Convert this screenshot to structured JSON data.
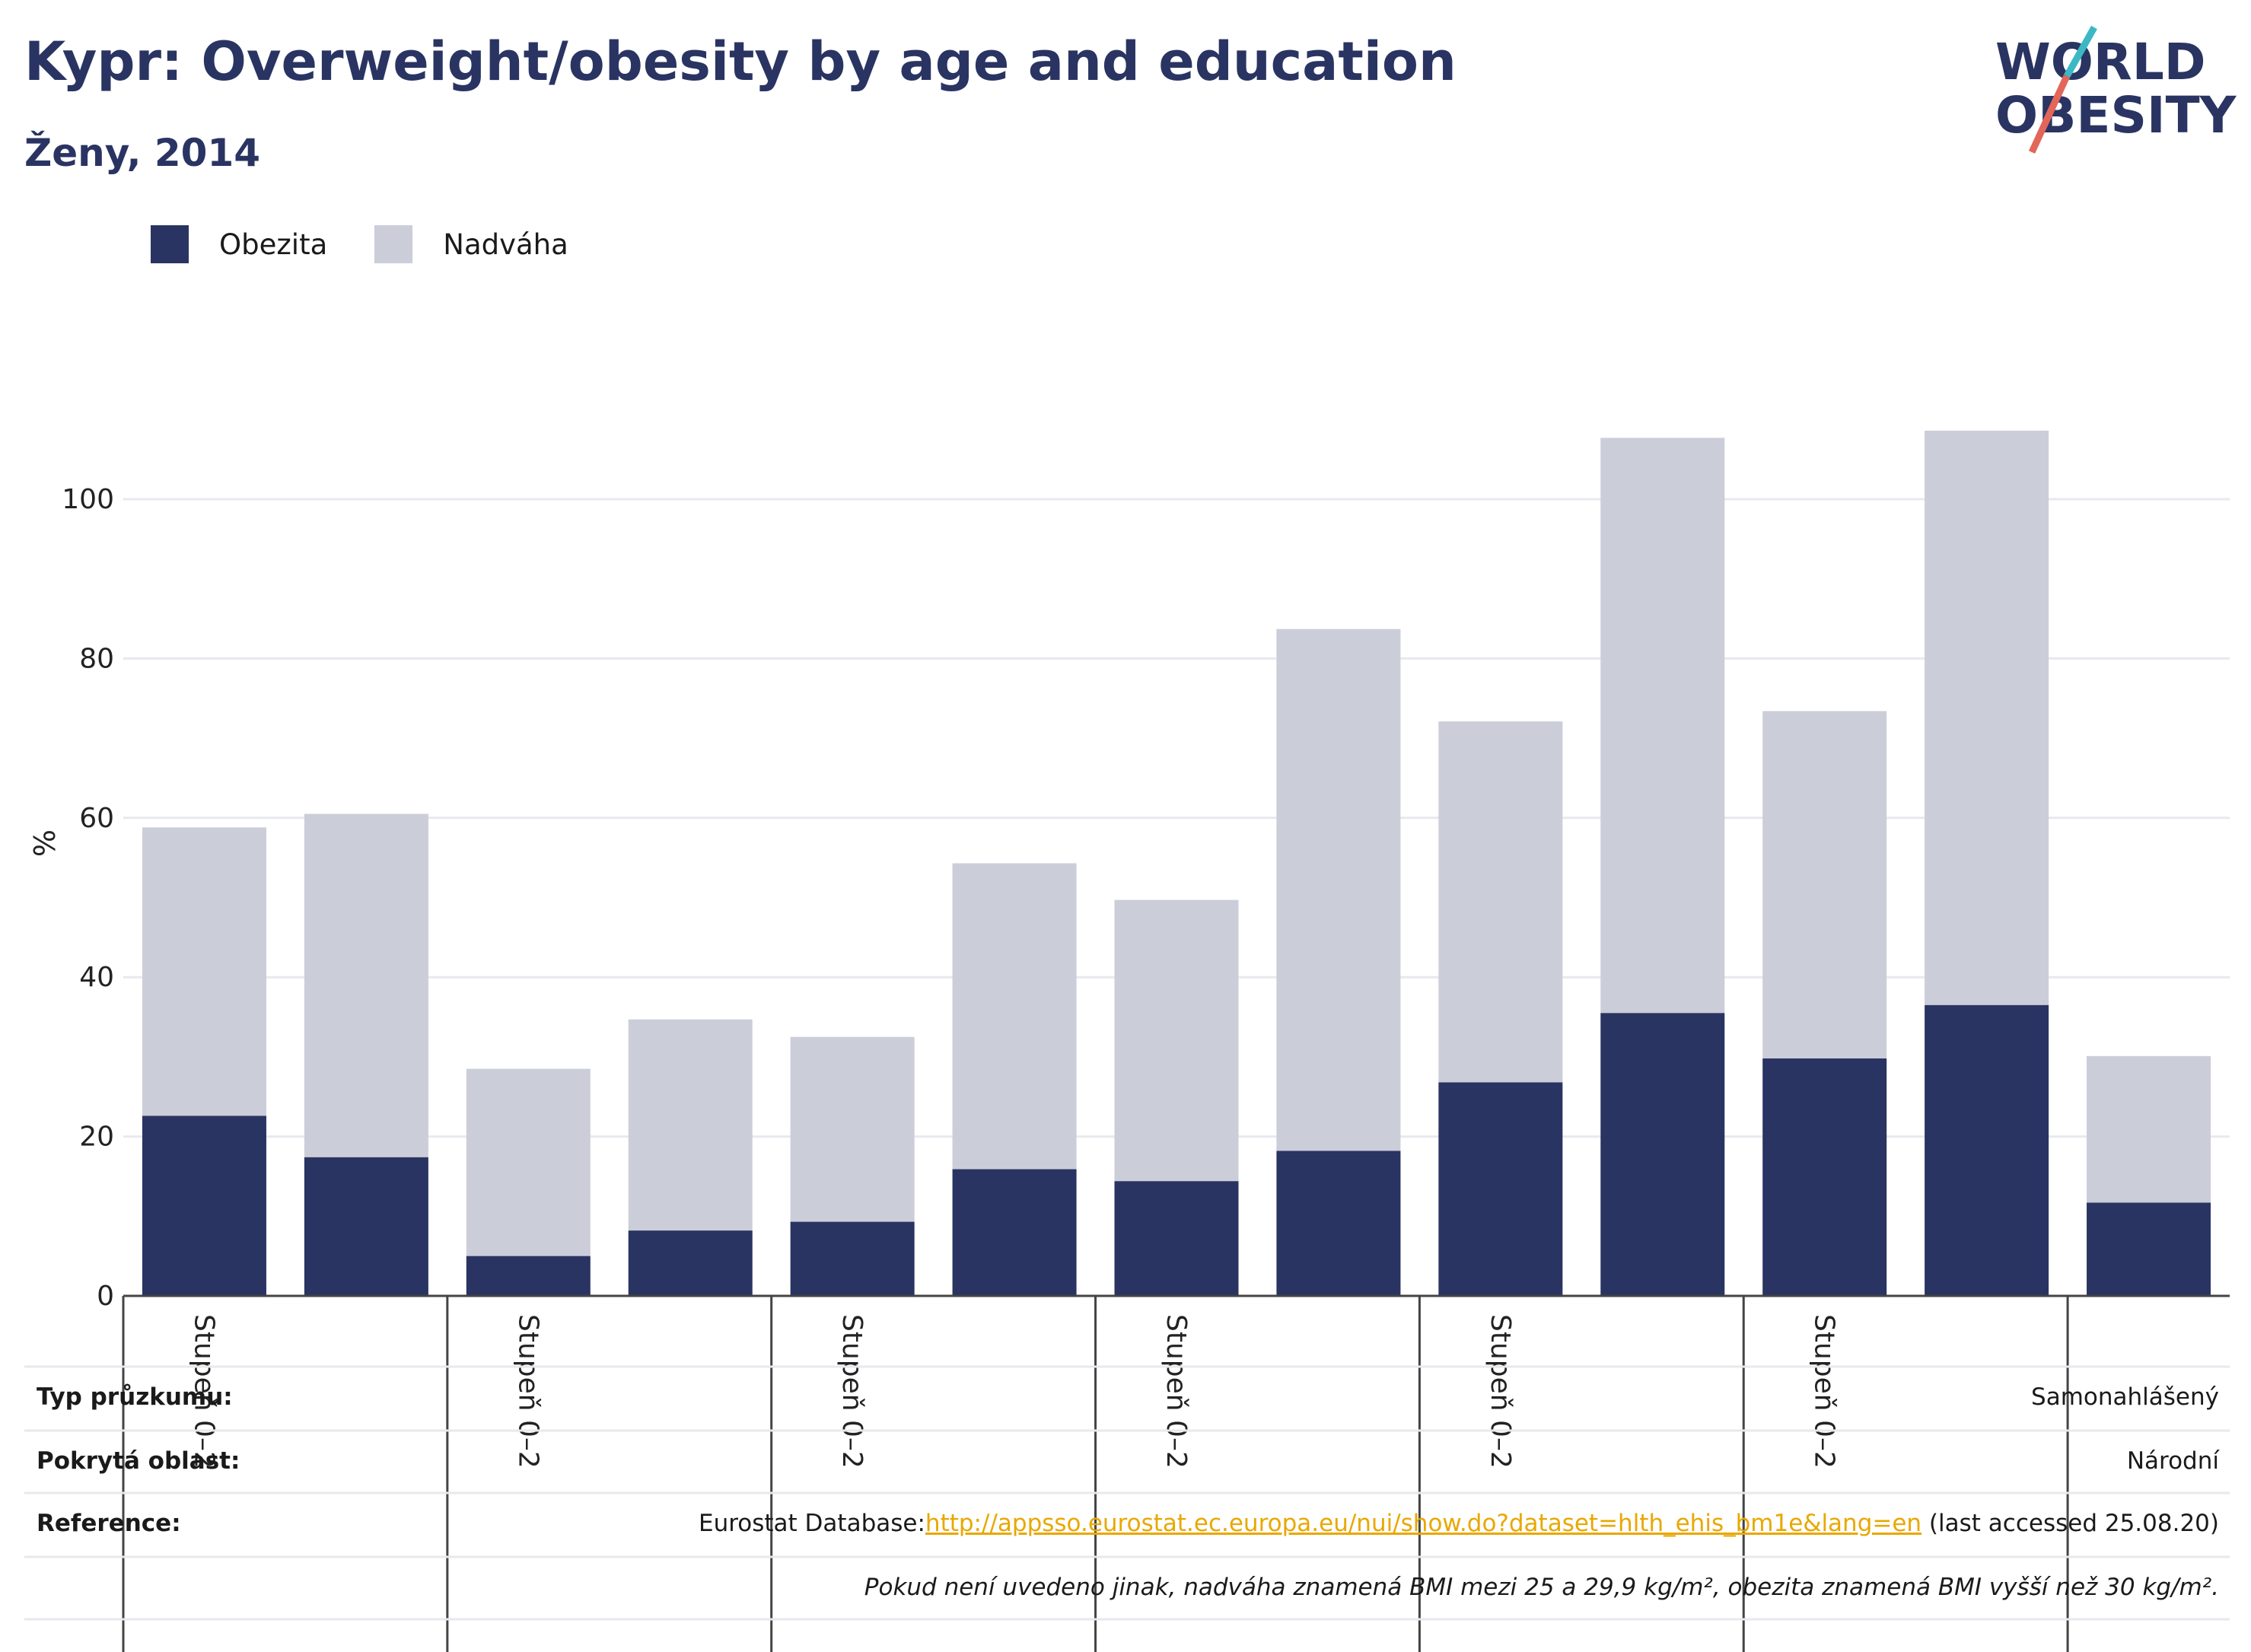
{
  "header": {
    "title": "Kypr: Overweight/obesity by age and education",
    "subtitle": "Ženy, 2014"
  },
  "logo": {
    "line1": "WORLD",
    "line2": "OBESITY"
  },
  "colors": {
    "obesity": "#2a3462",
    "overweight": "#cbcdd9",
    "accent_teal": "#3bb8c4",
    "accent_red": "#e2665a",
    "link": "#e8a800"
  },
  "chart_data": {
    "type": "bar",
    "stacked": true,
    "ylabel": "%",
    "ylim": [
      0,
      115
    ],
    "yticks": [
      0,
      20,
      40,
      60,
      80,
      100
    ],
    "grid": true,
    "legend_position": "top-left",
    "categories": [
      "Stupeň 0–2",
      "",
      "Stupeň 0–2",
      "",
      "Stupeň 0–2",
      "",
      "Stupeň 0–2",
      "",
      "Stupeň 0–2",
      "",
      "Stupeň 0–2",
      "",
      ""
    ],
    "series": [
      {
        "name": "Obezita",
        "values": [
          22.6,
          17.4,
          5.0,
          8.2,
          9.3,
          15.9,
          14.4,
          18.2,
          26.8,
          35.5,
          29.8,
          36.5,
          11.7
        ]
      },
      {
        "name": "Nadváha",
        "values": [
          36.2,
          43.1,
          23.5,
          26.5,
          23.2,
          38.4,
          35.3,
          65.5,
          45.3,
          72.2,
          43.6,
          72.1,
          18.4
        ]
      }
    ]
  },
  "info": {
    "survey_label": "Typ průzkumu:",
    "survey_value": "Samonahlášený",
    "area_label": "Pokrytá oblast:",
    "area_value": "Národní",
    "ref_label": "Reference:",
    "ref_prefix": "Eurostat Database:",
    "ref_link": "http://appsso.eurostat.ec.europa.eu/nui/show.do?dataset=hlth_ehis_bm1e&lang=en",
    "ref_suffix": " (last accessed 25.08.20)",
    "note": "Pokud není uvedeno jinak, nadváha znamená BMI mezi 25 a 29,9 kg/m², obezita znamená BMI vyšší než 30 kg/m²."
  }
}
